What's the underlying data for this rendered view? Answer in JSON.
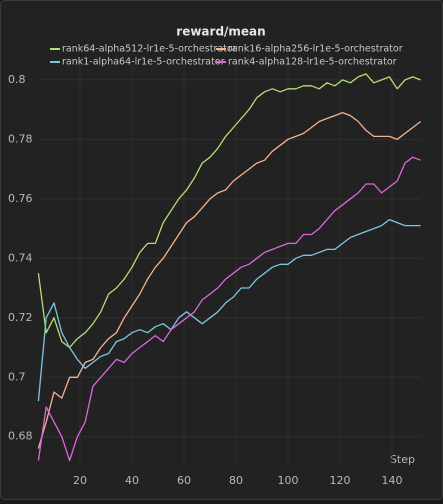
{
  "chart_data": {
    "type": "line",
    "title": "reward/mean",
    "x_label": "Step",
    "x": [
      4,
      7,
      10,
      13,
      16,
      19,
      22,
      25,
      28,
      31,
      34,
      37,
      40,
      43,
      46,
      49,
      52,
      55,
      58,
      61,
      64,
      67,
      70,
      73,
      76,
      79,
      82,
      85,
      88,
      91,
      94,
      97,
      100,
      103,
      106,
      109,
      112,
      115,
      118,
      121,
      124,
      127,
      130,
      133,
      136,
      139,
      142,
      145,
      148,
      151
    ],
    "series": [
      {
        "name": "rank64-alpha512-lr1e-5-orchestrator",
        "color": "#b5de74",
        "values": [
          0.735,
          0.715,
          0.72,
          0.712,
          0.71,
          0.713,
          0.715,
          0.718,
          0.722,
          0.728,
          0.73,
          0.733,
          0.737,
          0.742,
          0.745,
          0.745,
          0.752,
          0.756,
          0.76,
          0.763,
          0.767,
          0.772,
          0.774,
          0.777,
          0.781,
          0.784,
          0.787,
          0.79,
          0.794,
          0.796,
          0.797,
          0.796,
          0.797,
          0.797,
          0.798,
          0.798,
          0.797,
          0.799,
          0.798,
          0.8,
          0.799,
          0.801,
          0.802,
          0.799,
          0.8,
          0.801,
          0.797,
          0.8,
          0.801,
          0.8
        ]
      },
      {
        "name": "rank16-alpha256-lr1e-5-orchestrator",
        "color": "#f4b48e",
        "values": [
          0.676,
          0.685,
          0.695,
          0.693,
          0.7,
          0.7,
          0.705,
          0.706,
          0.71,
          0.713,
          0.715,
          0.72,
          0.724,
          0.728,
          0.733,
          0.737,
          0.74,
          0.744,
          0.748,
          0.752,
          0.754,
          0.757,
          0.76,
          0.762,
          0.763,
          0.766,
          0.768,
          0.77,
          0.772,
          0.773,
          0.776,
          0.778,
          0.78,
          0.781,
          0.782,
          0.784,
          0.786,
          0.787,
          0.788,
          0.789,
          0.788,
          0.786,
          0.783,
          0.781,
          0.781,
          0.781,
          0.78,
          0.782,
          0.784,
          0.786
        ]
      },
      {
        "name": "rank1-alpha64-lr1e-5-orchestrator",
        "color": "#7cc6e0",
        "values": [
          0.692,
          0.72,
          0.725,
          0.715,
          0.71,
          0.706,
          0.703,
          0.705,
          0.707,
          0.708,
          0.712,
          0.713,
          0.715,
          0.716,
          0.715,
          0.717,
          0.718,
          0.716,
          0.72,
          0.722,
          0.72,
          0.718,
          0.72,
          0.722,
          0.725,
          0.727,
          0.73,
          0.73,
          0.733,
          0.735,
          0.737,
          0.738,
          0.738,
          0.74,
          0.741,
          0.741,
          0.742,
          0.743,
          0.743,
          0.745,
          0.747,
          0.748,
          0.749,
          0.75,
          0.751,
          0.753,
          0.752,
          0.751,
          0.751,
          0.751
        ]
      },
      {
        "name": "rank4-alpha128-lr1e-5-orchestrator",
        "color": "#e066dc",
        "values": [
          0.672,
          0.69,
          0.685,
          0.68,
          0.672,
          0.68,
          0.685,
          0.697,
          0.7,
          0.703,
          0.706,
          0.705,
          0.708,
          0.71,
          0.712,
          0.714,
          0.712,
          0.716,
          0.718,
          0.72,
          0.722,
          0.726,
          0.728,
          0.73,
          0.733,
          0.735,
          0.737,
          0.738,
          0.74,
          0.742,
          0.743,
          0.744,
          0.745,
          0.745,
          0.748,
          0.748,
          0.75,
          0.753,
          0.756,
          0.758,
          0.76,
          0.762,
          0.765,
          0.765,
          0.762,
          0.764,
          0.766,
          0.772,
          0.774,
          0.773
        ]
      }
    ],
    "xlim": [
      4,
      151
    ],
    "xticks": [
      20,
      40,
      60,
      80,
      100,
      120,
      140
    ],
    "ylim": [
      0.6705,
      0.805
    ],
    "yticks": [
      0.68,
      0.7,
      0.72,
      0.74,
      0.76,
      0.78,
      0.8
    ],
    "grid": true
  }
}
